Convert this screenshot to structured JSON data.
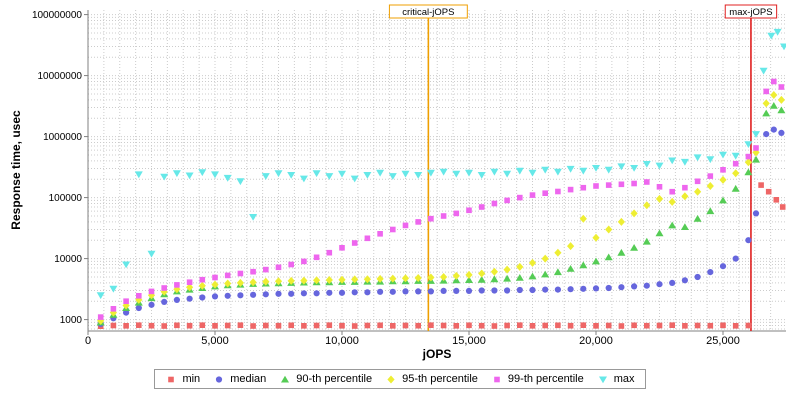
{
  "chart_data": {
    "type": "scatter",
    "title": "",
    "xlabel": "jOPS",
    "ylabel": "Response time, usec",
    "xlim": [
      0,
      27480
    ],
    "ylim_log": [
      650,
      120000000
    ],
    "y_scale": "log",
    "grid": true,
    "legend_position": "bottom",
    "x_ticks": [
      0,
      5000,
      10000,
      15000,
      20000,
      25000
    ],
    "x_tick_labels": [
      "0",
      "5,000",
      "10,000",
      "15,000",
      "20,000",
      "25,000"
    ],
    "y_ticks": [
      1000,
      10000,
      100000,
      1000000,
      10000000,
      100000000
    ],
    "y_tick_labels": [
      "1000",
      "10000",
      "100000",
      "1000000",
      "10000000",
      "100000000"
    ],
    "grid_color": "#cccccc",
    "axis_color": "#808080",
    "annotations": [
      {
        "label": "critical-jOPS",
        "x": 13400,
        "color": "#ef9f00"
      },
      {
        "label": "max-jOPS",
        "x": 26100,
        "color": "#e02020"
      }
    ],
    "series": [
      {
        "name": "min",
        "marker": "square",
        "color": "#ee6666",
        "x_start": 500,
        "x_step": 500,
        "y": [
          780,
          800,
          790,
          810,
          795,
          785,
          805,
          795,
          810,
          790,
          800,
          810,
          785,
          800,
          795,
          805,
          790,
          800,
          810,
          795,
          785,
          800,
          805,
          790,
          800,
          795,
          810,
          800,
          790,
          805,
          795,
          785,
          800,
          810,
          790,
          800,
          805,
          795,
          810,
          790,
          800,
          785,
          805,
          795,
          800,
          810,
          790,
          800,
          795,
          805,
          790,
          800
        ],
        "extra_points": [
          [
            26500,
            160000
          ],
          [
            26800,
            125000
          ],
          [
            27100,
            92000
          ],
          [
            27350,
            70000
          ]
        ]
      },
      {
        "name": "median",
        "marker": "circle",
        "color": "#6666dd",
        "x_start": 500,
        "x_step": 500,
        "y": [
          850,
          1050,
          1300,
          1550,
          1750,
          1950,
          2100,
          2200,
          2300,
          2400,
          2450,
          2500,
          2550,
          2600,
          2650,
          2650,
          2700,
          2700,
          2750,
          2750,
          2800,
          2800,
          2850,
          2850,
          2900,
          2900,
          2900,
          2950,
          2950,
          2950,
          3000,
          3000,
          3000,
          3050,
          3050,
          3100,
          3100,
          3150,
          3200,
          3250,
          3300,
          3400,
          3500,
          3600,
          3800,
          4000,
          4400,
          5000,
          6000,
          7500,
          10000,
          20000
        ],
        "extra_points": [
          [
            26300,
            55000
          ],
          [
            26700,
            1100000
          ],
          [
            27000,
            1300000
          ],
          [
            27300,
            1150000
          ]
        ]
      },
      {
        "name": "90-th percentile",
        "marker": "triangle",
        "color": "#55cc55",
        "x_start": 500,
        "x_step": 500,
        "y": [
          900,
          1200,
          1550,
          1900,
          2250,
          2600,
          2900,
          3100,
          3300,
          3500,
          3650,
          3750,
          3850,
          3900,
          3950,
          4000,
          4050,
          4100,
          4100,
          4150,
          4150,
          4200,
          4200,
          4250,
          4250,
          4300,
          4300,
          4350,
          4400,
          4450,
          4500,
          4600,
          4700,
          4850,
          5100,
          5500,
          6000,
          6800,
          7800,
          9000,
          10500,
          12500,
          15000,
          19000,
          26000,
          35000,
          33000,
          45000,
          60000,
          90000,
          140000,
          260000
        ],
        "extra_points": [
          [
            26300,
            420000
          ],
          [
            26700,
            2400000
          ],
          [
            27000,
            3200000
          ],
          [
            27300,
            2700000
          ]
        ]
      },
      {
        "name": "95-th percentile",
        "marker": "diamond",
        "color": "#eeee33",
        "x_start": 500,
        "x_step": 500,
        "y": [
          950,
          1300,
          1700,
          2100,
          2500,
          2850,
          3150,
          3400,
          3600,
          3750,
          3900,
          4000,
          4100,
          4200,
          4250,
          4300,
          4350,
          4400,
          4450,
          4500,
          4550,
          4600,
          4650,
          4700,
          4750,
          4800,
          4900,
          5000,
          5200,
          5400,
          5700,
          6100,
          6600,
          7300,
          8500,
          10000,
          12500,
          16000,
          45000,
          22000,
          30000,
          40000,
          55000,
          75000,
          95000,
          85000,
          105000,
          125000,
          155000,
          195000,
          250000,
          380000
        ],
        "extra_points": [
          [
            26300,
            550000
          ],
          [
            26700,
            3500000
          ],
          [
            27000,
            4800000
          ],
          [
            27300,
            4000000
          ]
        ]
      },
      {
        "name": "99-th percentile",
        "marker": "square",
        "color": "#ee66ee",
        "x_start": 500,
        "x_step": 500,
        "y": [
          1100,
          1500,
          2000,
          2450,
          2900,
          3300,
          3700,
          4100,
          4500,
          4900,
          5300,
          5700,
          6100,
          6600,
          7200,
          8000,
          9000,
          10500,
          12500,
          15000,
          18000,
          21500,
          25500,
          30000,
          35000,
          40000,
          45000,
          50000,
          55000,
          62000,
          70000,
          80000,
          90000,
          100000,
          110000,
          118000,
          126000,
          135000,
          145000,
          155000,
          160000,
          165000,
          170000,
          180000,
          150000,
          125000,
          145000,
          185000,
          225000,
          285000,
          360000,
          470000
        ],
        "extra_points": [
          [
            26300,
            650000
          ],
          [
            26700,
            5500000
          ],
          [
            27000,
            8000000
          ],
          [
            27300,
            6500000
          ]
        ]
      },
      {
        "name": "max",
        "marker": "triangle-down",
        "color": "#66e8e8",
        "x_start": 500,
        "x_step": 500,
        "y": [
          2500,
          3200,
          8000,
          240000,
          12000,
          220000,
          250000,
          230000,
          260000,
          240000,
          210000,
          185000,
          48000,
          225000,
          250000,
          235000,
          205000,
          250000,
          225000,
          245000,
          205000,
          235000,
          255000,
          225000,
          245000,
          235000,
          255000,
          265000,
          245000,
          255000,
          235000,
          265000,
          245000,
          275000,
          255000,
          285000,
          265000,
          295000,
          275000,
          305000,
          285000,
          325000,
          305000,
          355000,
          335000,
          405000,
          385000,
          455000,
          425000,
          505000,
          485000,
          750000
        ],
        "extra_points": [
          [
            26300,
            1100000
          ],
          [
            26600,
            12000000
          ],
          [
            26900,
            45000000
          ],
          [
            27150,
            52000000
          ],
          [
            27400,
            30000000
          ]
        ]
      }
    ]
  }
}
